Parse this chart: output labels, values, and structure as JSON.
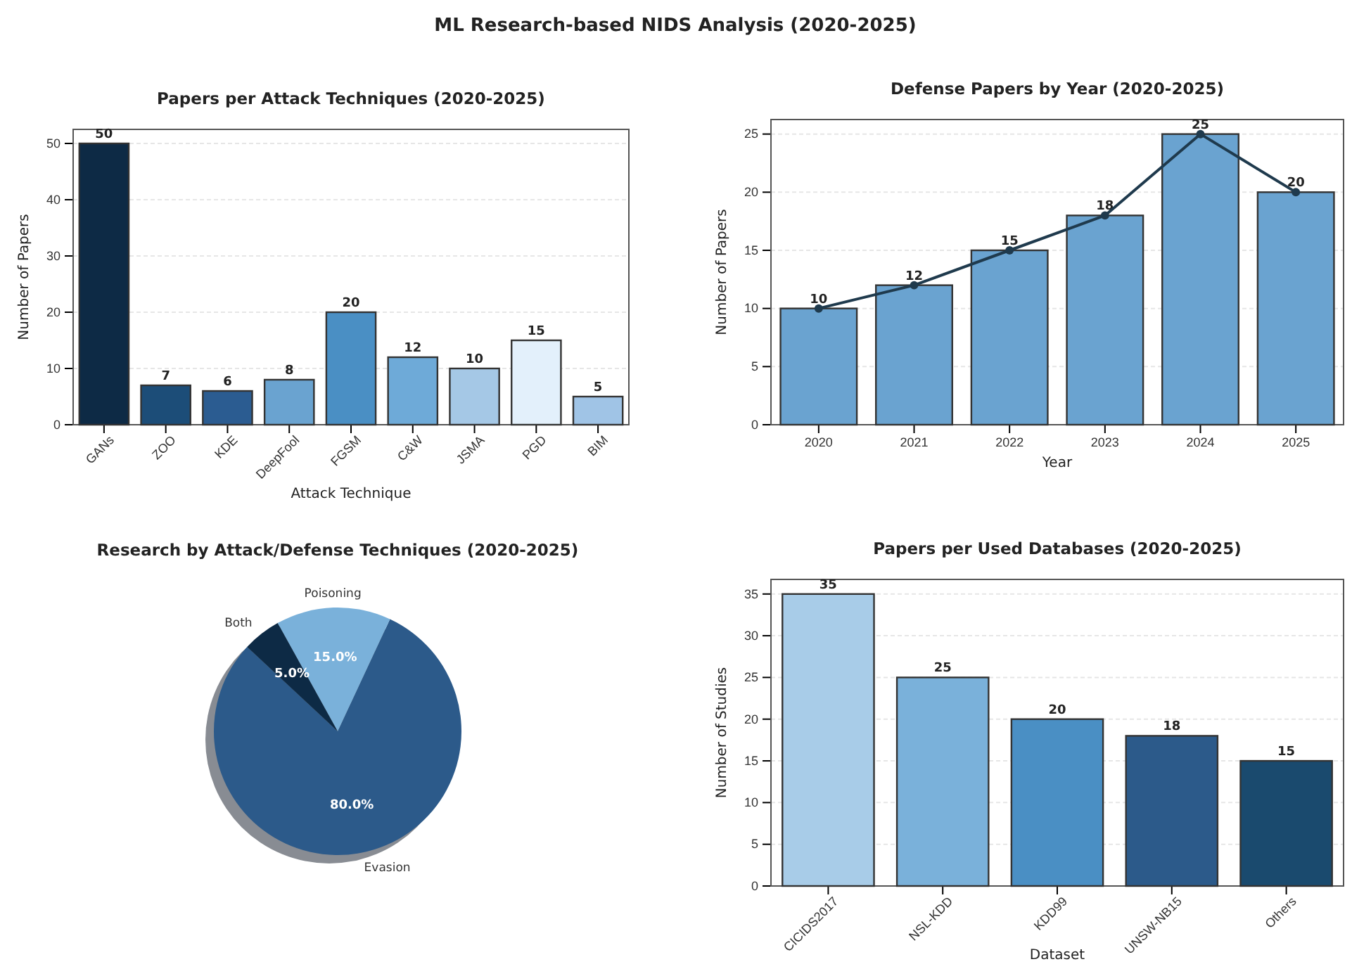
{
  "chart_data": [
    {
      "type": "bar",
      "title": "Papers per Attack Techniques (2020-2025)",
      "annotations": [
        "ML Research-based NIDS Analysis (2020-2025)"
      ],
      "xlabel": "Attack Technique",
      "ylabel": "Number of Papers",
      "categories": [
        "GANs",
        "ZOO",
        "KDE",
        "DeepFool",
        "FGSM",
        "C&W",
        "JSMA",
        "PGD",
        "BIM"
      ],
      "values": [
        50,
        7,
        6,
        8,
        20,
        12,
        10,
        15,
        5
      ],
      "colors": [
        "#0d2a45",
        "#1c4d78",
        "#2b5c91",
        "#6aa3d0",
        "#4a8fc4",
        "#6eaad8",
        "#a5c8e6",
        "#e3f0fb",
        "#a0c4e6"
      ],
      "ylim": [
        0,
        52.5
      ],
      "yticks": [
        0,
        10,
        20,
        30,
        40,
        50
      ],
      "grid": "y",
      "data_labels": true
    },
    {
      "type": "bar",
      "title": "Defense Papers by Year (2020-2025)",
      "xlabel": "Year",
      "ylabel": "Number of Papers",
      "categories": [
        "2020",
        "2021",
        "2022",
        "2023",
        "2024",
        "2025"
      ],
      "series": [
        {
          "type": "bar",
          "color": "#6aa3d0",
          "values": [
            10,
            12,
            15,
            18,
            25,
            20
          ],
          "value_labels": [
            "10",
            "12",
            "15",
            "18",
            "25",
            "20"
          ]
        },
        {
          "type": "line",
          "color": "#1f3a4d",
          "values": [
            10,
            12,
            15,
            18,
            25,
            20
          ]
        }
      ],
      "ylim": [
        0,
        26.25
      ],
      "yticks": [
        0,
        5,
        10,
        15,
        20,
        25
      ],
      "grid": "y",
      "marker": "circle",
      "line_style": "solid"
    },
    {
      "type": "pie",
      "title": "Research by Attack/Defense Techniques (2020-2025)",
      "categories": [
        "Evasion",
        "Poisoning",
        "Both"
      ],
      "values": [
        80,
        15,
        5
      ],
      "colors": [
        "#2c5a8a",
        "#7ab1da",
        "#0d2a45"
      ],
      "value_labels": [
        "80.0%",
        "15.0%",
        "5.0%"
      ]
    },
    {
      "type": "bar",
      "title": "Papers per Used Databases (2020-2025)",
      "xlabel": "Dataset",
      "ylabel": "Number of Studies",
      "categories": [
        "CICIDS2017",
        "NSL-KDD",
        "KDD99",
        "UNSW-NB15",
        "Others"
      ],
      "values": [
        35,
        25,
        20,
        18,
        15
      ],
      "colors": [
        "#a8cce8",
        "#7ab1da",
        "#4a8fc4",
        "#2c5a8a",
        "#1a4a6e"
      ],
      "ylim": [
        0,
        36.75
      ],
      "yticks": [
        0,
        5,
        10,
        15,
        20,
        25,
        30,
        35
      ],
      "grid": "y",
      "data_labels": true
    }
  ]
}
